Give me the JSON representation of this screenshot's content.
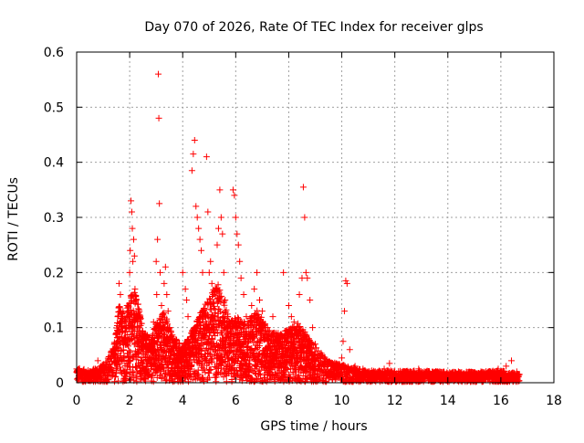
{
  "chart_data": {
    "type": "scatter",
    "title": "Day 070 of 2026, Rate Of TEC Index for receiver glps",
    "xlabel": "GPS time / hours",
    "ylabel": "ROTI / TECUs",
    "xlim": [
      0,
      18
    ],
    "ylim": [
      0,
      0.6
    ],
    "xticks": [
      0,
      2,
      4,
      6,
      8,
      10,
      12,
      14,
      16,
      18
    ],
    "xtick_labels": [
      "0",
      "2",
      "4",
      "6",
      "8",
      "10",
      "12",
      "14",
      "16",
      "18"
    ],
    "yticks": [
      0,
      0.1,
      0.2,
      0.3,
      0.4,
      0.5,
      0.6
    ],
    "ytick_labels": [
      "0",
      "0.1",
      "0.2",
      "0.3",
      "0.4",
      "0.5",
      "0.6"
    ],
    "grid": true,
    "marker": "+",
    "color": "#ff0000",
    "series": [
      {
        "name": "ROTI",
        "points": [
          [
            0.0,
            0.025
          ],
          [
            0.05,
            0.018
          ],
          [
            0.1,
            0.012
          ],
          [
            0.15,
            0.02
          ],
          [
            0.2,
            0.008
          ],
          [
            0.3,
            0.015
          ],
          [
            0.4,
            0.01
          ],
          [
            0.5,
            0.02
          ],
          [
            0.6,
            0.012
          ],
          [
            0.7,
            0.025
          ],
          [
            0.8,
            0.04
          ],
          [
            0.9,
            0.015
          ],
          [
            1.0,
            0.022
          ],
          [
            1.1,
            0.03
          ],
          [
            1.2,
            0.018
          ],
          [
            1.3,
            0.045
          ],
          [
            1.4,
            0.06
          ],
          [
            1.5,
            0.09
          ],
          [
            1.55,
            0.12
          ],
          [
            1.6,
            0.18
          ],
          [
            1.65,
            0.16
          ],
          [
            1.7,
            0.11
          ],
          [
            1.75,
            0.13
          ],
          [
            1.8,
            0.08
          ],
          [
            1.85,
            0.1
          ],
          [
            1.9,
            0.14
          ],
          [
            1.95,
            0.12
          ],
          [
            2.0,
            0.2
          ],
          [
            2.02,
            0.24
          ],
          [
            2.05,
            0.33
          ],
          [
            2.08,
            0.31
          ],
          [
            2.1,
            0.28
          ],
          [
            2.12,
            0.22
          ],
          [
            2.15,
            0.26
          ],
          [
            2.18,
            0.23
          ],
          [
            2.2,
            0.17
          ],
          [
            2.25,
            0.15
          ],
          [
            2.3,
            0.12
          ],
          [
            2.35,
            0.1
          ],
          [
            2.4,
            0.09
          ],
          [
            2.5,
            0.08
          ],
          [
            2.6,
            0.07
          ],
          [
            2.7,
            0.06
          ],
          [
            2.8,
            0.07
          ],
          [
            2.9,
            0.11
          ],
          [
            3.0,
            0.22
          ],
          [
            3.02,
            0.16
          ],
          [
            3.05,
            0.26
          ],
          [
            3.08,
            0.56
          ],
          [
            3.1,
            0.48
          ],
          [
            3.12,
            0.325
          ],
          [
            3.15,
            0.2
          ],
          [
            3.2,
            0.14
          ],
          [
            3.25,
            0.11
          ],
          [
            3.3,
            0.18
          ],
          [
            3.35,
            0.21
          ],
          [
            3.4,
            0.16
          ],
          [
            3.45,
            0.13
          ],
          [
            3.5,
            0.1
          ],
          [
            3.6,
            0.08
          ],
          [
            4.0,
            0.2
          ],
          [
            4.1,
            0.17
          ],
          [
            4.15,
            0.15
          ],
          [
            4.2,
            0.12
          ],
          [
            4.25,
            0.035
          ],
          [
            4.3,
            0.05
          ],
          [
            4.35,
            0.385
          ],
          [
            4.4,
            0.415
          ],
          [
            4.45,
            0.44
          ],
          [
            4.5,
            0.32
          ],
          [
            4.55,
            0.3
          ],
          [
            4.6,
            0.28
          ],
          [
            4.65,
            0.26
          ],
          [
            4.7,
            0.24
          ],
          [
            4.75,
            0.2
          ],
          [
            4.8,
            0.13
          ],
          [
            4.85,
            0.12
          ],
          [
            4.9,
            0.41
          ],
          [
            4.95,
            0.31
          ],
          [
            5.0,
            0.2
          ],
          [
            5.05,
            0.22
          ],
          [
            5.1,
            0.18
          ],
          [
            5.15,
            0.16
          ],
          [
            5.2,
            0.12
          ],
          [
            5.3,
            0.25
          ],
          [
            5.35,
            0.28
          ],
          [
            5.4,
            0.35
          ],
          [
            5.45,
            0.3
          ],
          [
            5.5,
            0.27
          ],
          [
            5.55,
            0.2
          ],
          [
            5.6,
            0.15
          ],
          [
            5.7,
            0.12
          ],
          [
            5.8,
            0.1
          ],
          [
            5.9,
            0.35
          ],
          [
            5.95,
            0.34
          ],
          [
            6.0,
            0.3
          ],
          [
            6.05,
            0.27
          ],
          [
            6.1,
            0.25
          ],
          [
            6.15,
            0.22
          ],
          [
            6.2,
            0.19
          ],
          [
            6.3,
            0.16
          ],
          [
            6.4,
            0.12
          ],
          [
            6.5,
            0.1
          ],
          [
            6.6,
            0.14
          ],
          [
            6.7,
            0.17
          ],
          [
            6.8,
            0.2
          ],
          [
            6.9,
            0.15
          ],
          [
            7.0,
            0.13
          ],
          [
            7.2,
            0.1
          ],
          [
            7.4,
            0.12
          ],
          [
            7.6,
            0.09
          ],
          [
            7.8,
            0.2
          ],
          [
            8.0,
            0.14
          ],
          [
            8.1,
            0.12
          ],
          [
            8.2,
            0.11
          ],
          [
            8.3,
            0.09
          ],
          [
            8.4,
            0.16
          ],
          [
            8.5,
            0.19
          ],
          [
            8.55,
            0.355
          ],
          [
            8.6,
            0.3
          ],
          [
            8.65,
            0.2
          ],
          [
            8.7,
            0.19
          ],
          [
            8.8,
            0.15
          ],
          [
            8.9,
            0.1
          ],
          [
            9.0,
            0.07
          ],
          [
            9.2,
            0.05
          ],
          [
            9.4,
            0.04
          ],
          [
            9.6,
            0.03
          ],
          [
            9.8,
            0.035
          ],
          [
            10.0,
            0.045
          ],
          [
            10.05,
            0.075
          ],
          [
            10.1,
            0.13
          ],
          [
            10.15,
            0.185
          ],
          [
            10.2,
            0.18
          ],
          [
            10.3,
            0.06
          ],
          [
            10.5,
            0.03
          ],
          [
            10.8,
            0.025
          ],
          [
            11.0,
            0.02
          ],
          [
            11.3,
            0.015
          ],
          [
            11.6,
            0.025
          ],
          [
            11.8,
            0.035
          ],
          [
            12.0,
            0.02
          ],
          [
            12.3,
            0.015
          ],
          [
            12.6,
            0.02
          ],
          [
            12.9,
            0.025
          ],
          [
            13.2,
            0.02
          ],
          [
            13.5,
            0.015
          ],
          [
            13.8,
            0.018
          ],
          [
            14.1,
            0.012
          ],
          [
            14.4,
            0.02
          ],
          [
            14.7,
            0.015
          ],
          [
            15.0,
            0.018
          ],
          [
            15.3,
            0.012
          ],
          [
            15.6,
            0.02
          ],
          [
            15.9,
            0.025
          ],
          [
            16.2,
            0.03
          ],
          [
            16.4,
            0.04
          ],
          [
            16.6,
            0.02
          ],
          [
            16.7,
            0.015
          ]
        ],
        "envelope": [
          [
            0.0,
            0.025
          ],
          [
            0.5,
            0.02
          ],
          [
            1.0,
            0.03
          ],
          [
            1.4,
            0.06
          ],
          [
            1.6,
            0.13
          ],
          [
            1.8,
            0.11
          ],
          [
            2.0,
            0.14
          ],
          [
            2.2,
            0.16
          ],
          [
            2.5,
            0.09
          ],
          [
            2.8,
            0.07
          ],
          [
            3.0,
            0.1
          ],
          [
            3.3,
            0.12
          ],
          [
            3.6,
            0.08
          ],
          [
            4.0,
            0.06
          ],
          [
            4.3,
            0.08
          ],
          [
            4.6,
            0.11
          ],
          [
            5.0,
            0.14
          ],
          [
            5.3,
            0.17
          ],
          [
            5.6,
            0.13
          ],
          [
            5.8,
            0.1
          ],
          [
            6.0,
            0.11
          ],
          [
            6.4,
            0.1
          ],
          [
            6.8,
            0.12
          ],
          [
            7.2,
            0.09
          ],
          [
            7.6,
            0.08
          ],
          [
            8.0,
            0.09
          ],
          [
            8.4,
            0.1
          ],
          [
            8.8,
            0.07
          ],
          [
            9.2,
            0.05
          ],
          [
            9.6,
            0.035
          ],
          [
            10.0,
            0.03
          ],
          [
            10.5,
            0.025
          ],
          [
            11.0,
            0.02
          ],
          [
            12.0,
            0.02
          ],
          [
            13.0,
            0.02
          ],
          [
            14.0,
            0.018
          ],
          [
            15.0,
            0.018
          ],
          [
            16.0,
            0.02
          ],
          [
            16.7,
            0.015
          ]
        ]
      }
    ]
  }
}
